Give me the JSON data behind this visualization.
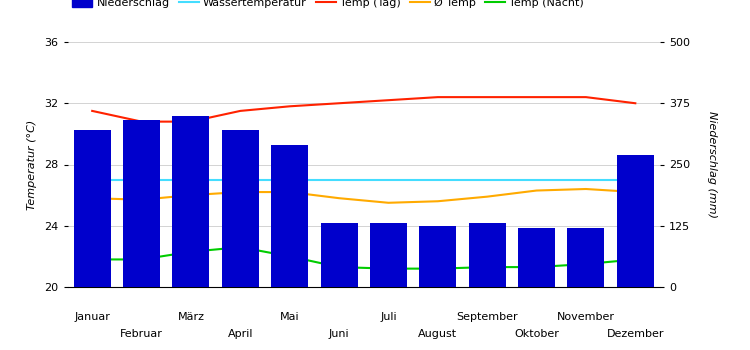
{
  "months": [
    "Januar",
    "Februar",
    "März",
    "April",
    "Mai",
    "Juni",
    "Juli",
    "August",
    "September",
    "Oktober",
    "November",
    "Dezember"
  ],
  "niederschlag": [
    320,
    340,
    350,
    320,
    290,
    130,
    130,
    125,
    130,
    120,
    120,
    270
  ],
  "wassertemperatur": [
    27.0,
    27.0,
    27.0,
    27.0,
    27.0,
    27.0,
    27.0,
    27.0,
    27.0,
    27.0,
    27.0,
    27.0
  ],
  "temp_tag": [
    31.5,
    30.8,
    30.8,
    31.5,
    31.8,
    32.0,
    32.2,
    32.4,
    32.4,
    32.4,
    32.4,
    32.0
  ],
  "avg_temp": [
    25.8,
    25.7,
    26.0,
    26.2,
    26.2,
    25.8,
    25.5,
    25.6,
    25.9,
    26.3,
    26.4,
    26.2
  ],
  "temp_nacht": [
    21.8,
    21.8,
    22.3,
    22.6,
    22.0,
    21.3,
    21.2,
    21.2,
    21.3,
    21.3,
    21.5,
    21.8
  ],
  "bar_color": "#0000cc",
  "wassertemp_color": "#44ddff",
  "temp_tag_color": "#ff2200",
  "avg_temp_color": "#ffaa00",
  "temp_nacht_color": "#00cc00",
  "temp_ylim": [
    20,
    36
  ],
  "niederschlag_ylim": [
    0,
    500
  ],
  "temp_yticks": [
    20,
    24,
    28,
    32,
    36
  ],
  "niederschlag_yticks": [
    0,
    125,
    250,
    375,
    500
  ],
  "ylabel_left": "Temperatur (°C)",
  "ylabel_right": "Niederschlag (mm)",
  "legend_labels": [
    "Niederschlag",
    "Wassertemperatur",
    "Temp (Tag)",
    "Ø Temp",
    "Temp (Nacht)"
  ]
}
